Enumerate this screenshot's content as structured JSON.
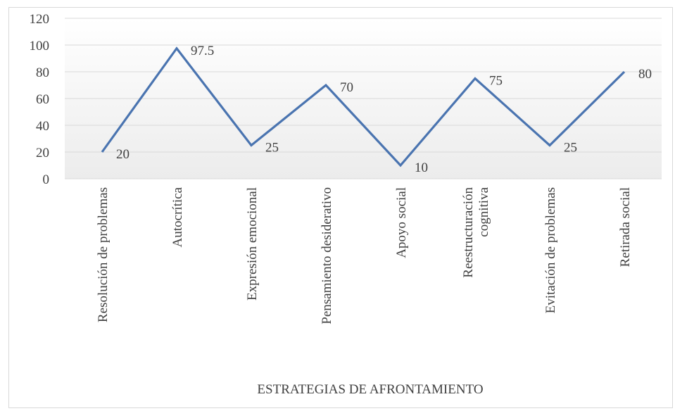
{
  "chart_data": {
    "type": "line",
    "categories": [
      [
        "Resolución de problemas"
      ],
      [
        "Autocrítica"
      ],
      [
        "Expresión emocional"
      ],
      [
        "Pensamiento desiderativo"
      ],
      [
        "Apoyo social"
      ],
      [
        "Reestructuración",
        "cognitiva"
      ],
      [
        "Evitación de problemas"
      ],
      [
        "Retirada social"
      ]
    ],
    "values": [
      20,
      97.5,
      25,
      70,
      10,
      75,
      25,
      80
    ],
    "data_labels": [
      "20",
      "97.5",
      "25",
      "70",
      "10",
      "75",
      "25",
      "80"
    ],
    "yticks": [
      0,
      20,
      40,
      60,
      80,
      100,
      120
    ],
    "ylim": [
      0,
      120
    ],
    "xlabel": "ESTRATEGIAS DE AFRONTAMIENTO",
    "ylabel": "",
    "title": "",
    "grid": true,
    "legend": "none",
    "colors": {
      "line": "#4a74b0",
      "grid": "#d9d9d9",
      "plot_fill_top": "#ffffff",
      "plot_fill_bottom": "#ececec",
      "text": "#404040"
    }
  }
}
